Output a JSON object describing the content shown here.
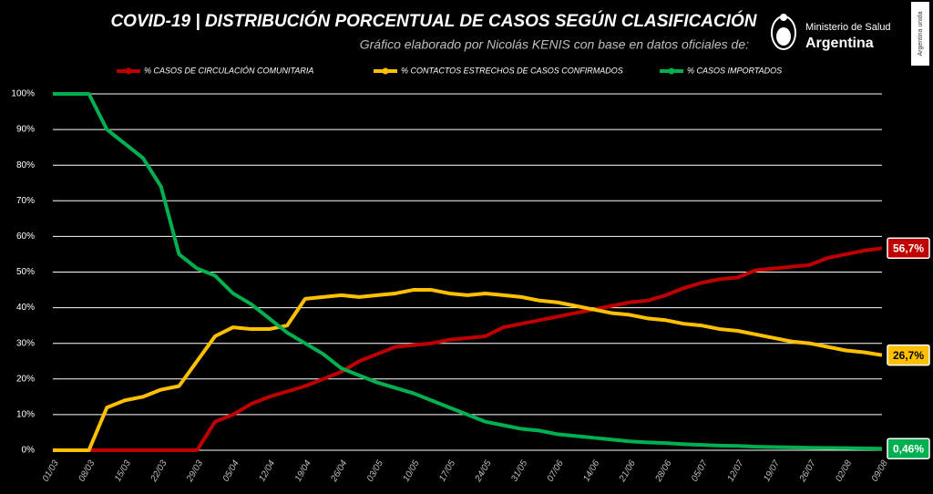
{
  "chart_data": {
    "type": "line",
    "title": "COVID-19  |  DISTRIBUCIÓN PORCENTUAL DE CASOS SEGÚN CLASIFICACIÓN",
    "subtitle": "Gráfico elaborado por Nicolás KENIS con base en datos oficiales de:",
    "logo": {
      "line1": "Ministerio de Salud",
      "line2": "Argentina"
    },
    "side_text": "Argentina unida",
    "categories": [
      "01/03",
      null,
      "08/03",
      null,
      "15/03",
      null,
      "22/03",
      null,
      "29/03",
      null,
      "05/04",
      null,
      "12/04",
      null,
      "19/04",
      null,
      "26/04",
      null,
      "03/05",
      null,
      "10/05",
      null,
      "17/05",
      null,
      "24/05",
      null,
      "31/05",
      null,
      "07/06",
      null,
      "14/06",
      null,
      "21/06",
      null,
      "28/06",
      null,
      "05/07",
      null,
      "12/07",
      null,
      "19/07",
      null,
      "26/07",
      null,
      "02/08",
      null,
      "09/08"
    ],
    "series": [
      {
        "name": "% CASOS DE CIRCULACIÓN COMUNITARIA",
        "color": "#c00000",
        "values": [
          0,
          0,
          0,
          0,
          0,
          0,
          0,
          0,
          0,
          8,
          10,
          13,
          15,
          16.5,
          18,
          20,
          22,
          25,
          27,
          29,
          29.5,
          30,
          31,
          31.5,
          32,
          34.5,
          35.5,
          36.5,
          37.5,
          38.5,
          39.5,
          40.5,
          41.5,
          42,
          43.5,
          45.5,
          47,
          48,
          48.5,
          50.5,
          51,
          51.5,
          52,
          54,
          55,
          56,
          56.7
        ],
        "value_labels": [
          null,
          null,
          null,
          null,
          null,
          null,
          null,
          null,
          null,
          null,
          null,
          null,
          null,
          null,
          null,
          null,
          null,
          null,
          null,
          null,
          null,
          null,
          null,
          null,
          null,
          null,
          null,
          null,
          null,
          null,
          null,
          null,
          null,
          null,
          null,
          null,
          null,
          null,
          null,
          null,
          null,
          null,
          null,
          null,
          null,
          null,
          "56,7%"
        ]
      },
      {
        "name": "% CONTACTOS ESTRECHOS DE CASOS CONFIRMADOS",
        "color": "#ffc000",
        "values": [
          0,
          0,
          0,
          12,
          14,
          15,
          17,
          18,
          25,
          32,
          34.5,
          34,
          34,
          35,
          42.5,
          43,
          43.5,
          43,
          43.5,
          44,
          45,
          45,
          44,
          43.5,
          44,
          43.5,
          43,
          42,
          41.5,
          40.5,
          39.5,
          38.5,
          38,
          37,
          36.5,
          35.5,
          35,
          34,
          33.5,
          32.5,
          31.5,
          30.5,
          30,
          29,
          28,
          27.5,
          26.7
        ],
        "value_labels": [
          null,
          null,
          null,
          null,
          null,
          null,
          null,
          null,
          null,
          null,
          null,
          null,
          null,
          null,
          null,
          null,
          null,
          null,
          null,
          null,
          null,
          null,
          null,
          null,
          null,
          null,
          null,
          null,
          null,
          null,
          null,
          null,
          null,
          null,
          null,
          null,
          null,
          null,
          null,
          null,
          null,
          null,
          null,
          null,
          null,
          null,
          "26,7%"
        ]
      },
      {
        "name": "% CASOS IMPORTADOS",
        "color": "#00b050",
        "values": [
          100,
          100,
          100,
          90,
          86,
          82,
          74,
          55,
          51,
          49,
          44,
          41,
          37,
          33,
          30,
          27,
          23,
          21,
          19,
          17.5,
          16,
          14,
          12,
          10,
          8,
          7,
          6,
          5.5,
          4.5,
          4,
          3.5,
          3,
          2.5,
          2.2,
          2,
          1.7,
          1.5,
          1.3,
          1.2,
          1,
          0.9,
          0.8,
          0.7,
          0.65,
          0.6,
          0.5,
          0.46
        ],
        "value_labels": [
          null,
          null,
          null,
          null,
          null,
          null,
          null,
          null,
          null,
          null,
          null,
          null,
          null,
          null,
          null,
          null,
          null,
          null,
          null,
          null,
          null,
          null,
          null,
          null,
          null,
          null,
          null,
          null,
          null,
          null,
          null,
          null,
          null,
          null,
          null,
          null,
          null,
          null,
          null,
          null,
          null,
          null,
          null,
          null,
          null,
          null,
          "0,46%"
        ]
      }
    ],
    "ylim": [
      0,
      100
    ],
    "yticks": [
      {
        "value": 0,
        "label": "0%"
      },
      {
        "value": 10,
        "label": "10%"
      },
      {
        "value": 20,
        "label": "20%"
      },
      {
        "value": 30,
        "label": "30%"
      },
      {
        "value": 40,
        "label": "40%"
      },
      {
        "value": 50,
        "label": "50%"
      },
      {
        "value": 60,
        "label": "60%"
      },
      {
        "value": 70,
        "label": "70%"
      },
      {
        "value": 80,
        "label": "80%"
      },
      {
        "value": 90,
        "label": "90%"
      },
      {
        "value": 100,
        "label": "100%"
      }
    ],
    "grid": true
  }
}
